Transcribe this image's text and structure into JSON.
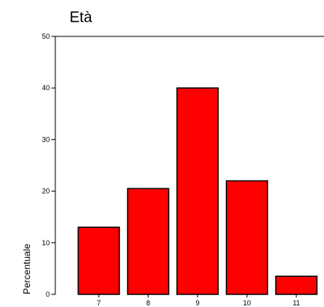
{
  "chart_data": {
    "type": "bar",
    "title": "Età",
    "xlabel": "",
    "ylabel": "Percentuale",
    "categories": [
      "7",
      "8",
      "9",
      "10",
      "11"
    ],
    "values": [
      13,
      20.5,
      40,
      22,
      3.5
    ],
    "ylim": [
      0,
      50
    ],
    "yticks": [
      0,
      10,
      20,
      30,
      40,
      50
    ],
    "bar_color": "#ff0000",
    "grid": false
  }
}
